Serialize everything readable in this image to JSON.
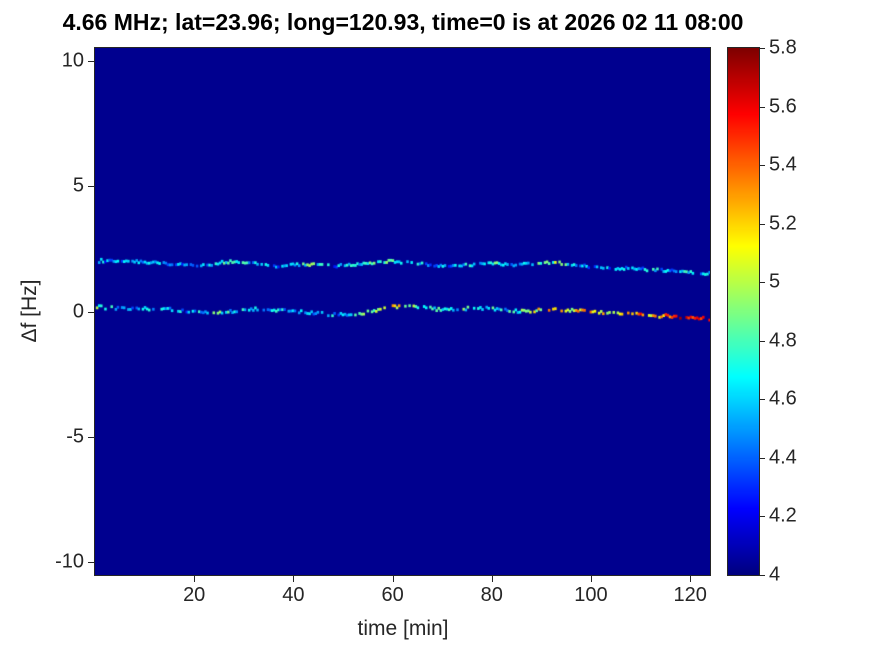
{
  "chart_data": {
    "type": "heatmap",
    "title": "4.66 MHz;  lat=23.96; long=120.93, time=0 is at 2026 02 11 08:00",
    "xlabel": "time [min]",
    "ylabel": "Δf [Hz]",
    "xlim": [
      0,
      124
    ],
    "ylim": [
      -10.5,
      10.5
    ],
    "clim": [
      4,
      5.8
    ],
    "x_ticks": [
      20,
      40,
      60,
      80,
      100,
      120
    ],
    "y_ticks": [
      10,
      5,
      0,
      -5,
      -10
    ],
    "colorbar_ticks": [
      5.8,
      5.6,
      5.4,
      5.2,
      5,
      4.8,
      4.6,
      4.4,
      4.2,
      4
    ],
    "colormap": "jet",
    "grid": false,
    "legend": "none",
    "background_value": 4,
    "colors": {
      "plot_background": "#00008f",
      "axis_text": "#262626",
      "title_text": "#000000",
      "figure_background": "#ffffff"
    },
    "traces": [
      {
        "name": "upper-doppler-trace",
        "description": "near-constant trace around +2 Hz drifting to +1.5 Hz, mostly blue/cyan intensities",
        "points": [
          [
            0,
            2.02,
            4.5
          ],
          [
            4,
            2.0,
            4.45
          ],
          [
            8,
            1.98,
            4.5
          ],
          [
            12,
            1.95,
            4.6
          ],
          [
            16,
            1.86,
            4.45
          ],
          [
            20,
            1.82,
            4.5
          ],
          [
            24,
            1.9,
            4.6
          ],
          [
            28,
            2.0,
            4.7
          ],
          [
            32,
            1.92,
            4.5
          ],
          [
            36,
            1.8,
            4.45
          ],
          [
            40,
            1.86,
            4.6
          ],
          [
            44,
            1.9,
            4.85
          ],
          [
            48,
            1.83,
            4.5
          ],
          [
            52,
            1.86,
            4.55
          ],
          [
            56,
            1.93,
            4.7
          ],
          [
            60,
            2.0,
            4.9
          ],
          [
            64,
            1.95,
            4.6
          ],
          [
            68,
            1.82,
            4.5
          ],
          [
            72,
            1.78,
            4.45
          ],
          [
            76,
            1.86,
            4.6
          ],
          [
            80,
            1.93,
            4.85
          ],
          [
            84,
            1.87,
            4.55
          ],
          [
            88,
            1.92,
            4.8
          ],
          [
            92,
            1.95,
            4.95
          ],
          [
            96,
            1.86,
            4.6
          ],
          [
            100,
            1.78,
            4.5
          ],
          [
            104,
            1.74,
            4.5
          ],
          [
            108,
            1.7,
            4.45
          ],
          [
            112,
            1.68,
            4.6
          ],
          [
            116,
            1.62,
            4.55
          ],
          [
            120,
            1.56,
            4.6
          ],
          [
            124,
            1.5,
            4.65
          ]
        ]
      },
      {
        "name": "lower-doppler-trace",
        "description": "wavy trace around 0 Hz drifting to -0.3 Hz, warm (orange/red) intensities after ~90 min",
        "points": [
          [
            0,
            0.18,
            4.9
          ],
          [
            4,
            0.13,
            4.6
          ],
          [
            8,
            0.1,
            4.45
          ],
          [
            12,
            0.12,
            4.6
          ],
          [
            16,
            0.06,
            4.5
          ],
          [
            20,
            0.0,
            4.55
          ],
          [
            24,
            -0.06,
            4.8
          ],
          [
            28,
            0.0,
            4.6
          ],
          [
            32,
            0.09,
            4.5
          ],
          [
            36,
            0.05,
            4.55
          ],
          [
            40,
            0.0,
            4.6
          ],
          [
            44,
            -0.07,
            4.5
          ],
          [
            48,
            -0.12,
            4.6
          ],
          [
            52,
            -0.15,
            4.55
          ],
          [
            56,
            0.0,
            4.9
          ],
          [
            60,
            0.2,
            5.2
          ],
          [
            64,
            0.24,
            5.0
          ],
          [
            68,
            0.1,
            4.7
          ],
          [
            72,
            0.08,
            4.6
          ],
          [
            76,
            0.13,
            4.85
          ],
          [
            80,
            0.12,
            4.7
          ],
          [
            84,
            0.02,
            4.6
          ],
          [
            88,
            0.04,
            4.9
          ],
          [
            92,
            0.1,
            5.4
          ],
          [
            96,
            0.05,
            5.1
          ],
          [
            100,
            0.0,
            5.3
          ],
          [
            104,
            -0.06,
            5.0
          ],
          [
            108,
            -0.1,
            5.5
          ],
          [
            112,
            -0.15,
            5.2
          ],
          [
            116,
            -0.2,
            5.45
          ],
          [
            120,
            -0.27,
            5.6
          ],
          [
            124,
            -0.3,
            5.4
          ]
        ]
      }
    ]
  }
}
